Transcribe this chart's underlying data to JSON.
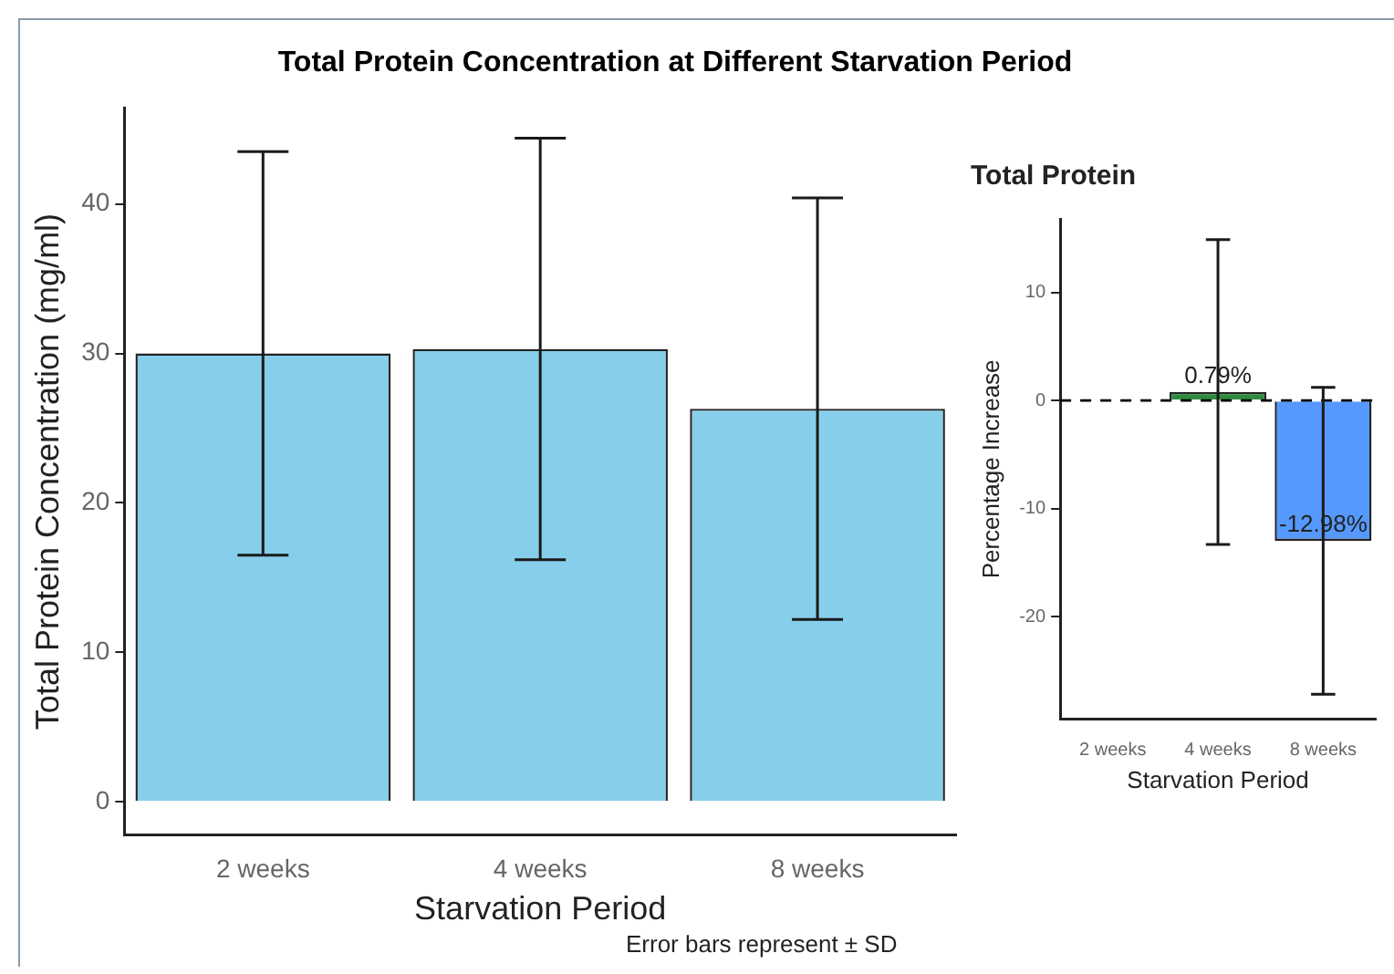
{
  "chart_data": [
    {
      "type": "bar",
      "title": "Total Protein Concentration at Different Starvation Period",
      "xlabel": "Starvation Period",
      "ylabel": "Total Protein Concentration (mg/ml)",
      "categories": [
        "2 weeks",
        "4 weeks",
        "8 weeks"
      ],
      "values": [
        30.0,
        30.3,
        26.3
      ],
      "errors": [
        13.5,
        14.1,
        14.1
      ],
      "color": "#87ceeb",
      "ylim": [
        -2.2,
        46.4
      ],
      "yticks": [
        0,
        10,
        20,
        30,
        40
      ],
      "grid": false,
      "legend": false,
      "annotations": [
        "Error bars represent ± SD"
      ]
    },
    {
      "type": "bar",
      "title": "Total Protein",
      "xlabel": "Starvation Period",
      "ylabel": "Percentage Increase",
      "categories": [
        "2 weeks",
        "4 weeks",
        "8 weeks"
      ],
      "values": [
        null,
        0.79,
        -12.98
      ],
      "errors": [
        null,
        14.1,
        14.2
      ],
      "colors": [
        "#2e8b3e",
        "#2e8b3e",
        "#5599ff"
      ],
      "value_labels": [
        null,
        "0.79%",
        "-12.98%"
      ],
      "ylim": [
        -29.5,
        16.8
      ],
      "yticks": [
        -20,
        -10,
        0,
        10
      ],
      "grid": false,
      "legend": false,
      "ref_lines": [
        {
          "axis": "y",
          "value": 0,
          "line_style": "dashed",
          "color": "#000000"
        }
      ]
    }
  ]
}
